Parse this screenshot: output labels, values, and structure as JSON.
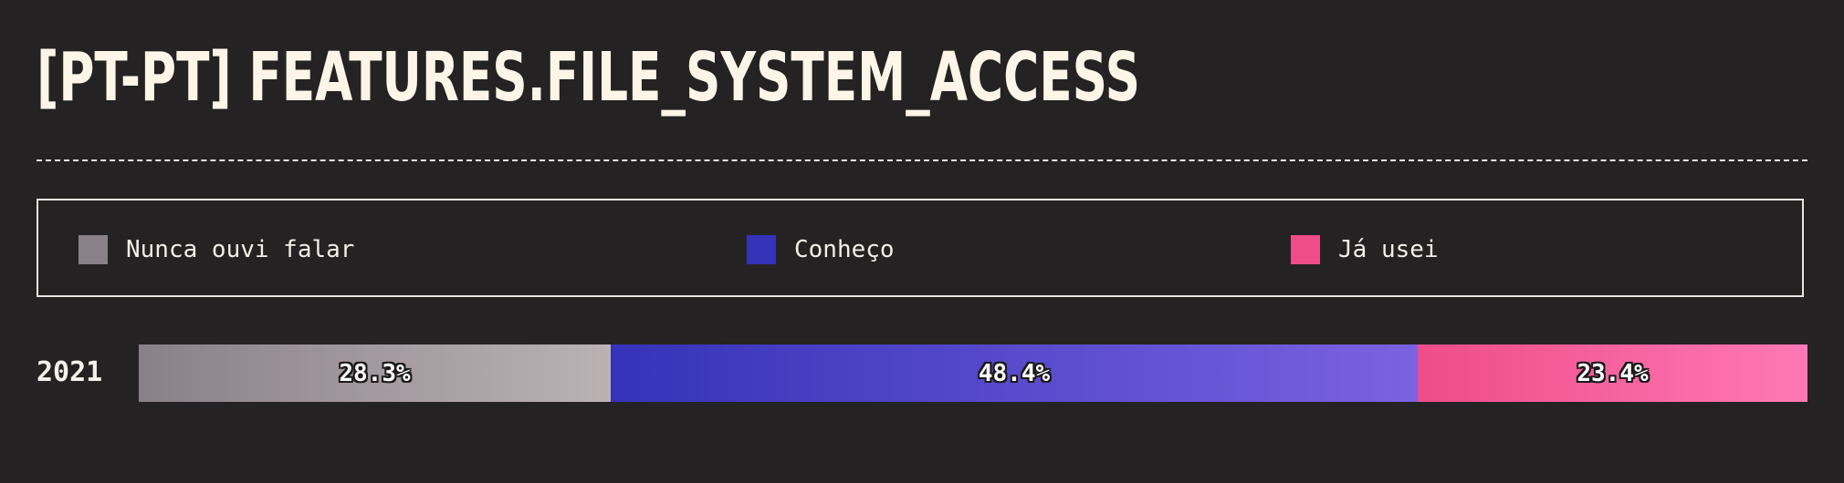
{
  "title": "[PT-PT] FEATURES.FILE_SYSTEM_ACCESS",
  "chart_data": {
    "type": "bar",
    "orientation": "horizontal",
    "stacked": true,
    "normalized": true,
    "categories": [
      "2021"
    ],
    "series": [
      {
        "name": "Nunca ouvi falar",
        "values": [
          28.3
        ],
        "labels": [
          "28.3%"
        ],
        "color": "#8a8088"
      },
      {
        "name": "Conheço",
        "values": [
          48.4
        ],
        "labels": [
          "48.4%"
        ],
        "color": "#3533b8"
      },
      {
        "name": "Já usei",
        "values": [
          23.4
        ],
        "labels": [
          "23.4%"
        ],
        "color": "#ee4d88"
      }
    ],
    "legend_position": "top",
    "grid": false
  }
}
